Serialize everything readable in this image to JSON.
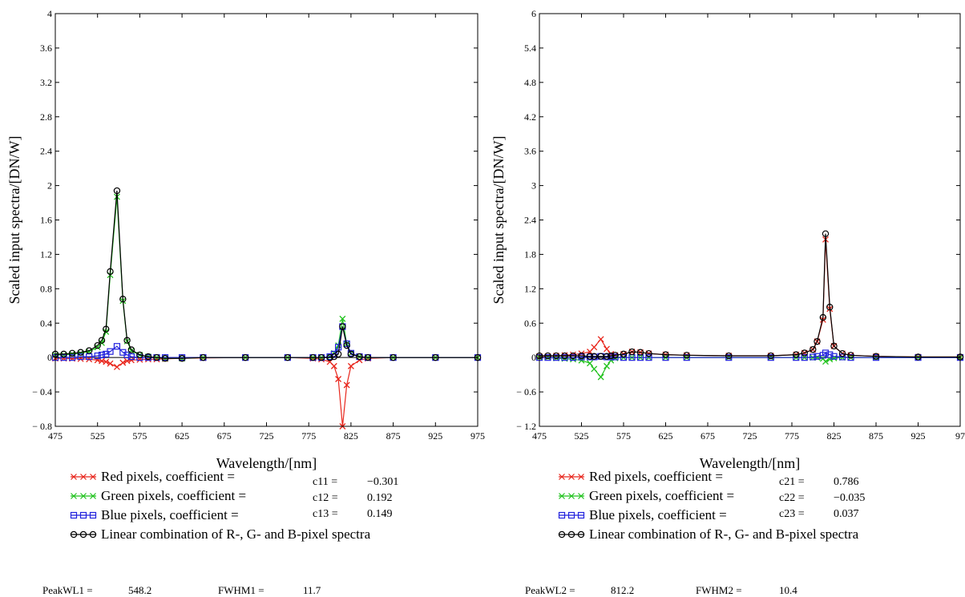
{
  "chart_data": [
    {
      "type": "line",
      "xlabel": "Wavelength/[nm]",
      "ylabel": "Scaled input spectra/[DN/W]",
      "xlim": [
        475,
        975
      ],
      "ylim": [
        -0.8,
        4
      ],
      "x_ticks": [
        "475",
        "525",
        "575",
        "625",
        "675",
        "725",
        "775",
        "825",
        "875",
        "925",
        "975"
      ],
      "y_ticks": [
        "− 0.8",
        "− 0.4",
        "0",
        "0.4",
        "0.8",
        "1.2",
        "1.6",
        "2",
        "2.4",
        "2.8",
        "3.2",
        "3.6",
        "4"
      ],
      "y_tick_values": [
        -0.8,
        -0.4,
        0,
        0.4,
        0.8,
        1.2,
        1.6,
        2,
        2.4,
        2.8,
        3.2,
        3.6,
        4
      ],
      "grid": false,
      "legend_position": "below",
      "series": [
        {
          "name": "Red pixels, coefficient =",
          "color": "#e8261c",
          "marker": "x",
          "x": [
            475,
            485,
            495,
            505,
            515,
            525,
            530,
            535,
            540,
            548,
            555,
            560,
            565,
            575,
            585,
            595,
            605,
            625,
            650,
            700,
            750,
            780,
            790,
            800,
            805,
            810,
            815,
            820,
            825,
            835,
            845,
            875,
            925,
            975
          ],
          "y": [
            -0.01,
            -0.01,
            -0.012,
            -0.015,
            -0.02,
            -0.03,
            -0.04,
            -0.05,
            -0.07,
            -0.11,
            -0.06,
            -0.04,
            -0.03,
            -0.025,
            -0.02,
            -0.02,
            -0.015,
            -0.01,
            -0.005,
            0,
            0,
            -0.01,
            -0.02,
            -0.05,
            -0.1,
            -0.25,
            -0.8,
            -0.32,
            -0.1,
            -0.03,
            -0.01,
            0,
            0,
            0
          ]
        },
        {
          "name": "Green pixels, coefficient =",
          "color": "#22c21e",
          "marker": "x",
          "x": [
            475,
            485,
            495,
            505,
            515,
            525,
            530,
            535,
            540,
            548,
            555,
            560,
            565,
            575,
            585,
            595,
            605,
            625,
            650,
            700,
            750,
            780,
            790,
            800,
            805,
            810,
            815,
            820,
            825,
            835,
            845,
            875,
            925,
            975
          ],
          "y": [
            0.03,
            0.03,
            0.04,
            0.05,
            0.07,
            0.12,
            0.17,
            0.3,
            0.96,
            1.87,
            0.66,
            0.19,
            0.08,
            0.03,
            0.01,
            0,
            -0.01,
            -0.01,
            0,
            0,
            0,
            0,
            0,
            0.01,
            0.05,
            0.14,
            0.45,
            0.16,
            0.05,
            0.01,
            0,
            0,
            0,
            0
          ]
        },
        {
          "name": "Blue pixels, coefficient =",
          "color": "#2222dd",
          "marker": "square",
          "x": [
            475,
            485,
            495,
            505,
            515,
            525,
            530,
            535,
            540,
            548,
            555,
            560,
            565,
            575,
            585,
            595,
            605,
            625,
            650,
            700,
            750,
            780,
            790,
            800,
            805,
            810,
            815,
            820,
            825,
            835,
            845,
            875,
            925,
            975
          ],
          "y": [
            0,
            0,
            0,
            0.01,
            0.01,
            0.02,
            0.03,
            0.04,
            0.07,
            0.13,
            0.06,
            0.03,
            0.01,
            0,
            0,
            0,
            0,
            0,
            0,
            0,
            0,
            0,
            0,
            0.01,
            0.04,
            0.12,
            0.36,
            0.16,
            0.05,
            0.01,
            0,
            0,
            0,
            0
          ]
        },
        {
          "name": "Linear combination of R-, G- and B-pixel spectra",
          "color": "#000000",
          "marker": "circle",
          "x": [
            475,
            485,
            495,
            505,
            515,
            525,
            530,
            535,
            540,
            548,
            555,
            560,
            565,
            575,
            585,
            595,
            605,
            625,
            650,
            700,
            750,
            780,
            790,
            800,
            805,
            810,
            815,
            820,
            825,
            835,
            845,
            875,
            925,
            975
          ],
          "y": [
            0.04,
            0.04,
            0.05,
            0.06,
            0.08,
            0.14,
            0.2,
            0.33,
            1,
            1.94,
            0.68,
            0.2,
            0.09,
            0.03,
            0.01,
            0,
            -0.01,
            -0.01,
            0,
            0,
            0,
            0,
            0,
            0,
            0.01,
            0.04,
            0.36,
            0.14,
            0.04,
            0.01,
            0,
            0,
            0,
            0
          ]
        }
      ],
      "coefficients": [
        {
          "label": "c11 =",
          "value": "−0.301"
        },
        {
          "label": "c12 =",
          "value": "0.192"
        },
        {
          "label": "c13 =",
          "value": "0.149"
        }
      ],
      "footer": {
        "peak_label": "PeakWL1 =",
        "peak_value": "548.2",
        "fwhm_label": "FWHM1 =",
        "fwhm_value": "11.7"
      }
    },
    {
      "type": "line",
      "xlabel": "Wavelength/[nm]",
      "ylabel": "Scaled input spectra/[DN/W]",
      "xlim": [
        475,
        975
      ],
      "ylim": [
        -1.2,
        6
      ],
      "x_ticks": [
        "475",
        "525",
        "575",
        "625",
        "675",
        "725",
        "775",
        "825",
        "875",
        "925",
        "97"
      ],
      "y_ticks": [
        "− 1.2",
        "− 0.6",
        "0",
        "0.6",
        "1.2",
        "1.8",
        "2.4",
        "3",
        "3.6",
        "4.2",
        "4.8",
        "5.4",
        "6"
      ],
      "y_tick_values": [
        -1.2,
        -0.6,
        0,
        0.6,
        1.2,
        1.8,
        2.4,
        3,
        3.6,
        4.2,
        4.8,
        5.4,
        6
      ],
      "grid": false,
      "legend_position": "below",
      "series": [
        {
          "name": "Red pixels, coefficient =",
          "color": "#e8261c",
          "marker": "x",
          "x": [
            475,
            485,
            495,
            505,
            515,
            525,
            535,
            540,
            548,
            555,
            560,
            565,
            575,
            585,
            595,
            605,
            625,
            650,
            700,
            750,
            780,
            790,
            800,
            805,
            812,
            815,
            820,
            825,
            835,
            845,
            875,
            925,
            975
          ],
          "y": [
            0.02,
            0.02,
            0.03,
            0.04,
            0.05,
            0.07,
            0.1,
            0.18,
            0.32,
            0.15,
            0.06,
            0.04,
            0.06,
            0.1,
            0.09,
            0.07,
            0.05,
            0.04,
            0.03,
            0.03,
            0.05,
            0.08,
            0.14,
            0.28,
            0.66,
            2.06,
            0.85,
            0.2,
            0.07,
            0.04,
            0.02,
            0.01,
            0.01
          ]
        },
        {
          "name": "Green pixels, coefficient =",
          "color": "#22c21e",
          "marker": "x",
          "x": [
            475,
            485,
            495,
            505,
            515,
            525,
            535,
            540,
            548,
            555,
            560,
            565,
            575,
            585,
            595,
            605,
            625,
            650,
            700,
            750,
            780,
            790,
            800,
            805,
            812,
            815,
            820,
            825,
            835,
            845,
            875,
            925,
            975
          ],
          "y": [
            0,
            0,
            -0.01,
            -0.02,
            -0.03,
            -0.05,
            -0.1,
            -0.2,
            -0.34,
            -0.15,
            -0.05,
            -0.01,
            0,
            0,
            0,
            0,
            0,
            0,
            0,
            0,
            0,
            0,
            0,
            0,
            -0.02,
            -0.07,
            -0.03,
            -0.01,
            0,
            0,
            0,
            0,
            0
          ]
        },
        {
          "name": "Blue pixels, coefficient =",
          "color": "#2222dd",
          "marker": "square",
          "x": [
            475,
            485,
            495,
            505,
            515,
            525,
            535,
            540,
            548,
            555,
            560,
            565,
            575,
            585,
            595,
            605,
            625,
            650,
            700,
            750,
            780,
            790,
            800,
            805,
            812,
            815,
            820,
            825,
            835,
            845,
            875,
            925,
            975
          ],
          "y": [
            0,
            0,
            0,
            0,
            0,
            0.01,
            0.01,
            0.01,
            0.02,
            0.01,
            0.01,
            0.01,
            0,
            0,
            0,
            0,
            0,
            0,
            0,
            0,
            0,
            0,
            0.01,
            0.02,
            0.04,
            0.08,
            0.05,
            0.02,
            0.01,
            0,
            0,
            0,
            0
          ]
        },
        {
          "name": "Linear combination of R-, G- and B-pixel spectra",
          "color": "#000000",
          "marker": "circle",
          "x": [
            475,
            485,
            495,
            505,
            515,
            525,
            535,
            540,
            548,
            555,
            560,
            565,
            575,
            585,
            595,
            605,
            625,
            650,
            700,
            750,
            780,
            790,
            800,
            805,
            812,
            815,
            820,
            825,
            835,
            845,
            875,
            925,
            975
          ],
          "y": [
            0.03,
            0.03,
            0.03,
            0.03,
            0.03,
            0.03,
            0.02,
            0.02,
            0.02,
            0.02,
            0.03,
            0.04,
            0.06,
            0.1,
            0.09,
            0.07,
            0.05,
            0.04,
            0.03,
            0.03,
            0.05,
            0.08,
            0.14,
            0.28,
            0.7,
            2.16,
            0.88,
            0.2,
            0.07,
            0.04,
            0.02,
            0.01,
            0.01
          ]
        }
      ],
      "coefficients": [
        {
          "label": "c21 =",
          "value": "0.786"
        },
        {
          "label": "c22 =",
          "value": "−0.035"
        },
        {
          "label": "c23 =",
          "value": "0.037"
        }
      ],
      "footer": {
        "peak_label": "PeakWL2 =",
        "peak_value": "812.2",
        "fwhm_label": "FWHM2 =",
        "fwhm_value": "10.4"
      }
    }
  ]
}
